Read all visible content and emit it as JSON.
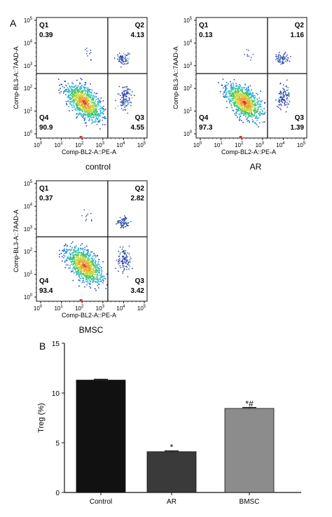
{
  "panel_labels": {
    "a": "A",
    "b": "B"
  },
  "flow": {
    "x_axis_label": "Comp-BL2-A::PE-A",
    "y_axis_label": "Comp-BL3-A::7AAD-A",
    "tick_base": "10",
    "tick_exponents": [
      "0",
      "1",
      "2",
      "3",
      "4",
      "5"
    ],
    "plots": [
      {
        "name": "control",
        "caption": "control",
        "quadrants": {
          "q1": {
            "label": "Q1",
            "value": "0.39"
          },
          "q2": {
            "label": "Q2",
            "value": "4.13"
          },
          "q3": {
            "label": "Q3",
            "value": "4.55"
          },
          "q4": {
            "label": "Q4",
            "value": "90.9"
          }
        }
      },
      {
        "name": "ar",
        "caption": "AR",
        "quadrants": {
          "q1": {
            "label": "Q1",
            "value": "0.13"
          },
          "q2": {
            "label": "Q2",
            "value": "1.16"
          },
          "q3": {
            "label": "Q3",
            "value": "1.39"
          },
          "q4": {
            "label": "Q4",
            "value": "97.3"
          }
        }
      },
      {
        "name": "bmsc",
        "caption": "BMSC",
        "quadrants": {
          "q1": {
            "label": "Q1",
            "value": "0.37"
          },
          "q2": {
            "label": "Q2",
            "value": "2.82"
          },
          "q3": {
            "label": "Q3",
            "value": "3.42"
          },
          "q4": {
            "label": "Q4",
            "value": "93.4"
          }
        }
      }
    ]
  },
  "chart_data": {
    "type": "bar",
    "title": "",
    "xlabel": "",
    "ylabel": "Treg (%)",
    "ylim": [
      0,
      15
    ],
    "yticks": [
      "0",
      "5",
      "10",
      "15"
    ],
    "categories": [
      "Control",
      "AR",
      "BMSC"
    ],
    "values": [
      11.3,
      4.1,
      8.45
    ],
    "errors": [
      0.08,
      0.08,
      0.1
    ],
    "significance": [
      "",
      "*",
      "*#"
    ],
    "bar_colors": [
      "#111111",
      "#3a3a3a",
      "#8c8c8c"
    ],
    "grid": false,
    "legend": "none"
  }
}
